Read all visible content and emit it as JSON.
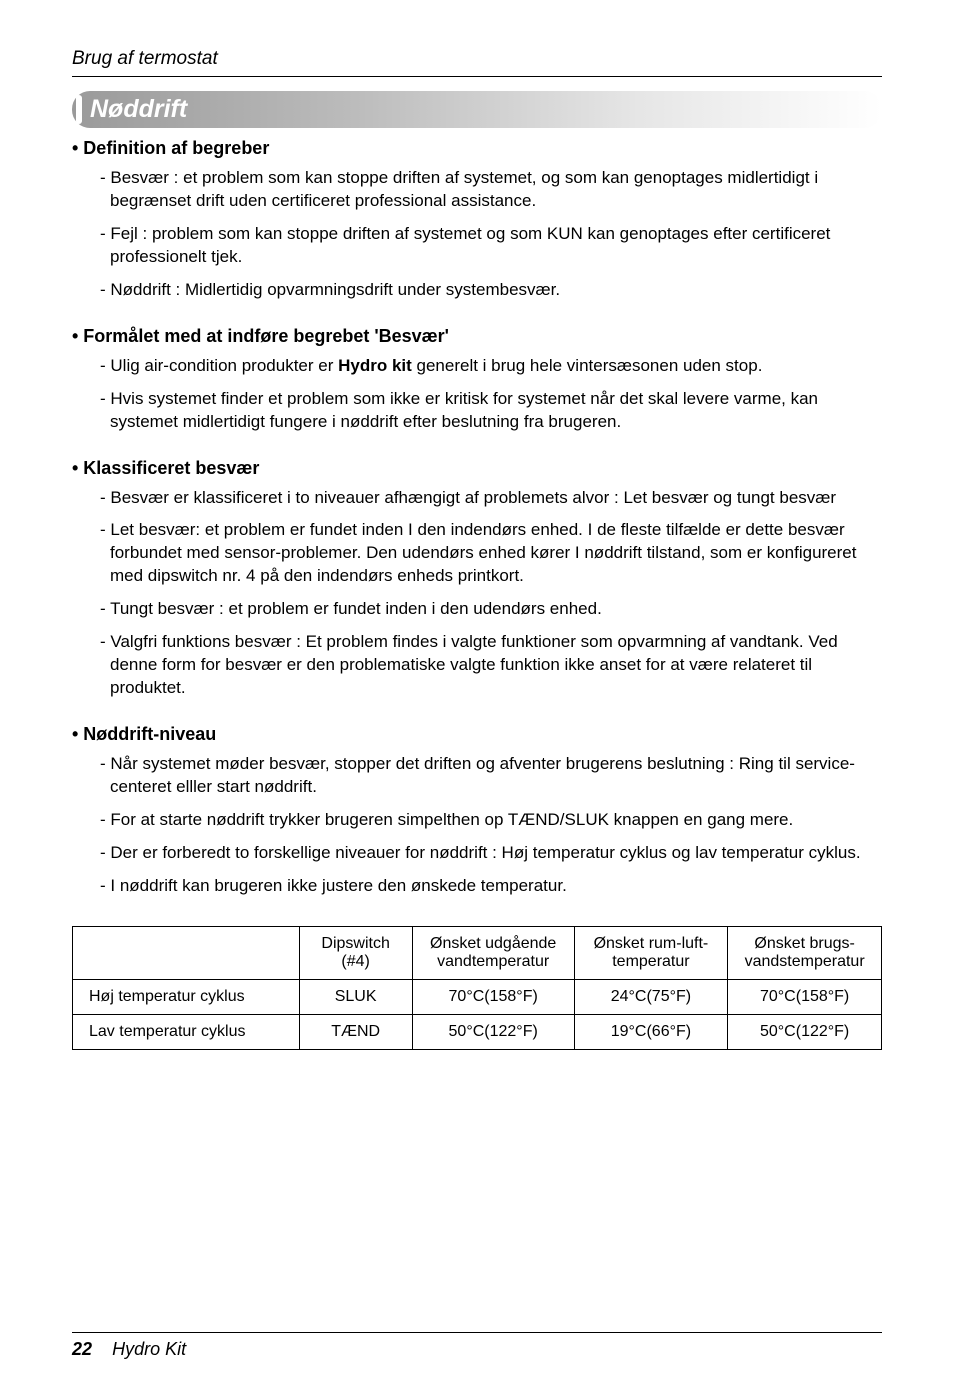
{
  "running_head": "Brug af termostat",
  "section_title": "Nøddrift",
  "blocks": [
    {
      "head": "• Definition af begreber",
      "items": [
        "- Besvær : et problem som kan stoppe driften af systemet, og som kan genoptages midlertidigt i begrænset drift uden certificeret professional assistance.",
        "- Fejl : problem som kan stoppe driften af systemet og som KUN kan genoptages efter certificeret professionelt tjek.",
        "- Nøddrift : Midlertidig opvarmningsdrift under systembesvær."
      ]
    },
    {
      "head": "• Formålet med at indføre begrebet 'Besvær'",
      "items": [
        {
          "pre": "- Ulig air-condition produkter er ",
          "bold": "Hydro kit",
          "post": " generelt i brug hele vintersæsonen uden stop."
        },
        "- Hvis systemet finder et problem som ikke er kritisk for systemet når det skal levere varme, kan systemet midlertidigt fungere i nøddrift efter beslutning fra brugeren."
      ]
    },
    {
      "head": "• Klassificeret besvær",
      "items": [
        "- Besvær er klassificeret i to niveauer afhængigt af problemets alvor : Let besvær og tungt besvær",
        "- Let besvær: et problem er fundet inden I den indendørs enhed. I de fleste tilfælde er dette besvær forbundet med sensor-problemer. Den udendørs enhed kører I nøddrift tilstand, som er konfigureret med dipswitch nr. 4 på den indendørs enheds printkort.",
        "- Tungt besvær : et problem er fundet inden i den udendørs enhed.",
        "- Valgfri funktions besvær : Et problem findes i valgte funktioner som opvarmning af vandtank. Ved denne form for besvær er den problematiske valgte funktion ikke anset for at være relateret til produktet."
      ]
    },
    {
      "head": "• Nøddrift-niveau",
      "items": [
        "- Når systemet møder besvær, stopper det driften og afventer brugerens beslutning : Ring til service-centeret elller start nøddrift.",
        "- For at starte nøddrift trykker brugeren simpelthen op TÆND/SLUK knappen en gang mere.",
        "- Der er forberedt to forskellige niveauer for nøddrift : Høj temperatur cyklus og lav temperatur cyklus.",
        "- I nøddrift kan brugeren ikke justere den ønskede temperatur."
      ]
    }
  ],
  "table": {
    "headers": [
      "",
      "Dipswitch\n(#4)",
      "Ønsket udgående\nvandtemperatur",
      "Ønsket rum-luft-\ntemperatur",
      "Ønsket brugs-\nvandstemperatur"
    ],
    "rows": [
      [
        "Høj temperatur cyklus",
        "SLUK",
        "70°C(158°F)",
        "24°C(75°F)",
        "70°C(158°F)"
      ],
      [
        "Lav temperatur cyklus",
        "TÆND",
        "50°C(122°F)",
        "19°C(66°F)",
        "50°C(122°F)"
      ]
    ],
    "col_widths": [
      "28%",
      "14%",
      "20%",
      "19%",
      "19%"
    ]
  },
  "footer": {
    "page": "22",
    "book": "Hydro Kit"
  }
}
